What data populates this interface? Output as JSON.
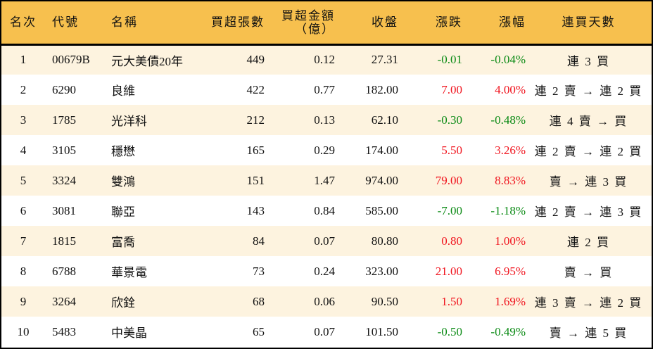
{
  "headers": {
    "rank": "名次",
    "code": "代號",
    "name": "名稱",
    "net_lots": "買超張數",
    "net_amount": "買超金額",
    "net_amount_unit": "（億）",
    "close": "收盤",
    "change": "漲跌",
    "pct": "漲幅",
    "streak": "連買天數"
  },
  "colors": {
    "header_bg": "#F7C04E",
    "alt_row_bg": "#FDF3DF",
    "up": "#f0141e",
    "down": "#0a8a14"
  },
  "rows": [
    {
      "rank": "1",
      "code": "00679B",
      "name": "元大美債20年",
      "net_lots": "449",
      "net_amount": "0.12",
      "close": "27.31",
      "change": "-0.01",
      "pct": "-0.04%",
      "dir": "down",
      "streak": "連 3 買"
    },
    {
      "rank": "2",
      "code": "6290",
      "name": "良維",
      "net_lots": "422",
      "net_amount": "0.77",
      "close": "182.00",
      "change": "7.00",
      "pct": "4.00%",
      "dir": "up",
      "streak": "連 2 賣 → 連 2 買"
    },
    {
      "rank": "3",
      "code": "1785",
      "name": "光洋科",
      "net_lots": "212",
      "net_amount": "0.13",
      "close": "62.10",
      "change": "-0.30",
      "pct": "-0.48%",
      "dir": "down",
      "streak": "連 4 賣 → 買"
    },
    {
      "rank": "4",
      "code": "3105",
      "name": "穩懋",
      "net_lots": "165",
      "net_amount": "0.29",
      "close": "174.00",
      "change": "5.50",
      "pct": "3.26%",
      "dir": "up",
      "streak": "連 2 賣 → 連 2 買"
    },
    {
      "rank": "5",
      "code": "3324",
      "name": "雙鴻",
      "net_lots": "151",
      "net_amount": "1.47",
      "close": "974.00",
      "change": "79.00",
      "pct": "8.83%",
      "dir": "up",
      "streak": "賣 → 連 3 買"
    },
    {
      "rank": "6",
      "code": "3081",
      "name": "聯亞",
      "net_lots": "143",
      "net_amount": "0.84",
      "close": "585.00",
      "change": "-7.00",
      "pct": "-1.18%",
      "dir": "down",
      "streak": "連 2 賣 → 連 3 買"
    },
    {
      "rank": "7",
      "code": "1815",
      "name": "富喬",
      "net_lots": "84",
      "net_amount": "0.07",
      "close": "80.80",
      "change": "0.80",
      "pct": "1.00%",
      "dir": "up",
      "streak": "連 2 買"
    },
    {
      "rank": "8",
      "code": "6788",
      "name": "華景電",
      "net_lots": "73",
      "net_amount": "0.24",
      "close": "323.00",
      "change": "21.00",
      "pct": "6.95%",
      "dir": "up",
      "streak": "賣 → 買"
    },
    {
      "rank": "9",
      "code": "3264",
      "name": "欣銓",
      "net_lots": "68",
      "net_amount": "0.06",
      "close": "90.50",
      "change": "1.50",
      "pct": "1.69%",
      "dir": "up",
      "streak": "連 3 賣 → 連 2 買"
    },
    {
      "rank": "10",
      "code": "5483",
      "name": "中美晶",
      "net_lots": "65",
      "net_amount": "0.07",
      "close": "101.50",
      "change": "-0.50",
      "pct": "-0.49%",
      "dir": "down",
      "streak": "賣 → 連 5 買"
    }
  ]
}
